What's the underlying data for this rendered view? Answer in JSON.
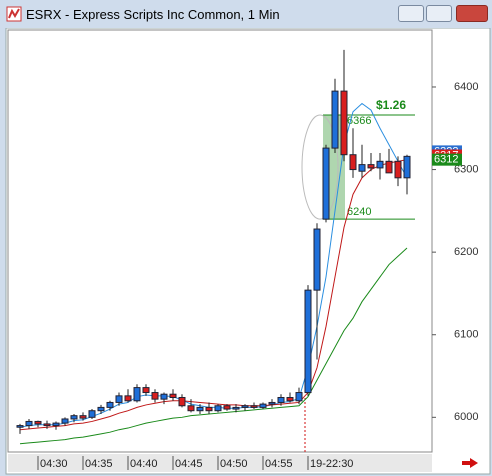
{
  "window_title": "ESRX - Express Scripts Inc Common, 1 Min",
  "chart_data": {
    "type": "candlestick",
    "categories": [
      null,
      null,
      "04:30",
      null,
      null,
      null,
      null,
      "04:35",
      null,
      null,
      null,
      null,
      "04:40",
      null,
      null,
      null,
      null,
      "04:45",
      null,
      null,
      null,
      null,
      "04:50",
      null,
      null,
      null,
      null,
      "04:55",
      null,
      null,
      null,
      null,
      "19-22:30",
      null,
      null,
      null,
      null,
      null,
      null,
      null,
      null,
      null,
      null,
      null
    ],
    "open": [
      5988,
      5990,
      5995,
      5992,
      5990,
      5993,
      5998,
      6002,
      6000,
      6008,
      6012,
      6018,
      6026,
      6020,
      6036,
      6030,
      6022,
      6028,
      6024,
      6014,
      6008,
      6012,
      6008,
      6014,
      6010,
      6012,
      6014,
      6012,
      6016,
      6018,
      6024,
      6020,
      6030,
      6154,
      6240,
      6326,
      6395,
      6318,
      6298,
      6306,
      6302,
      6310,
      6310,
      6290
    ],
    "high": [
      5992,
      5998,
      5996,
      5996,
      5995,
      6000,
      6004,
      6006,
      6010,
      6015,
      6020,
      6030,
      6034,
      6040,
      6040,
      6034,
      6030,
      6034,
      6028,
      6022,
      6016,
      6018,
      6016,
      6016,
      6016,
      6016,
      6018,
      6018,
      6022,
      6028,
      6030,
      6036,
      6160,
      6235,
      6330,
      6410,
      6445,
      6350,
      6330,
      6320,
      6320,
      6325,
      6316,
      6318
    ],
    "low": [
      5980,
      5986,
      5988,
      5986,
      5985,
      5990,
      5994,
      5996,
      5998,
      6004,
      6008,
      6014,
      6018,
      6018,
      6026,
      6018,
      6016,
      6020,
      6012,
      6006,
      6004,
      6004,
      6006,
      6008,
      6006,
      6008,
      6010,
      6010,
      6012,
      6014,
      6018,
      6016,
      6026,
      6070,
      6236,
      6320,
      6310,
      6290,
      6290,
      6298,
      6288,
      6300,
      6280,
      6270
    ],
    "close": [
      5990,
      5995,
      5992,
      5990,
      5993,
      5998,
      6002,
      5999,
      6008,
      6012,
      6018,
      6026,
      6020,
      6036,
      6030,
      6022,
      6028,
      6024,
      6014,
      6008,
      6012,
      6008,
      6014,
      6010,
      6012,
      6014,
      6012,
      6016,
      6018,
      6024,
      6020,
      6030,
      6154,
      6228,
      6326,
      6395,
      6318,
      6300,
      6306,
      6302,
      6310,
      6296,
      6290,
      6316
    ],
    "up_color": "#1e6fd9",
    "down_color": "#d81e1e",
    "series": [
      {
        "color": "#2a8ee0",
        "values": [
          5988,
          5990,
          5991,
          5991,
          5991,
          5993,
          5996,
          5997,
          6001,
          6005,
          6010,
          6016,
          6018,
          6025,
          6027,
          6026,
          6026,
          6025,
          6021,
          6016,
          6014,
          6012,
          6012,
          6011,
          6011,
          6012,
          6012,
          6013,
          6015,
          6018,
          6019,
          6023,
          6060,
          6110,
          6170,
          6250,
          6330,
          6370,
          6380,
          6372,
          6350,
          6330,
          6310,
          6290
        ]
      },
      {
        "color": "#c01818",
        "values": [
          5985,
          5986,
          5987,
          5988,
          5989,
          5990,
          5992,
          5993,
          5995,
          5998,
          6001,
          6005,
          6008,
          6012,
          6015,
          6017,
          6019,
          6020,
          6020,
          6019,
          6018,
          6017,
          6016,
          6015,
          6015,
          6014,
          6014,
          6014,
          6015,
          6016,
          6017,
          6018,
          6030,
          6060,
          6110,
          6170,
          6230,
          6270,
          6290,
          6300,
          6305,
          6308,
          6310,
          6312
        ]
      },
      {
        "color": "#1a8a1a",
        "values": [
          5968,
          5969,
          5970,
          5971,
          5972,
          5973,
          5975,
          5976,
          5978,
          5980,
          5982,
          5985,
          5987,
          5990,
          5993,
          5995,
          5997,
          5999,
          6000,
          6002,
          6003,
          6004,
          6005,
          6006,
          6007,
          6008,
          6009,
          6010,
          6011,
          6012,
          6013,
          6014,
          6025,
          6045,
          6065,
          6085,
          6105,
          6120,
          6140,
          6155,
          6170,
          6185,
          6195,
          6205
        ]
      }
    ],
    "ylim": [
      5958,
      6469
    ],
    "yticks": [
      6000,
      6100,
      6200,
      6300,
      6400
    ],
    "price_labels": [
      {
        "value": 6322,
        "color": "#2a6fd0"
      },
      {
        "value": 6317,
        "color": "#d81e1e"
      },
      {
        "value": 6312,
        "color": "#1a8a1a"
      }
    ],
    "range_box": {
      "top": 6366,
      "bottom": 6240,
      "change": "$1.26",
      "color": "#1a8a1a"
    }
  }
}
